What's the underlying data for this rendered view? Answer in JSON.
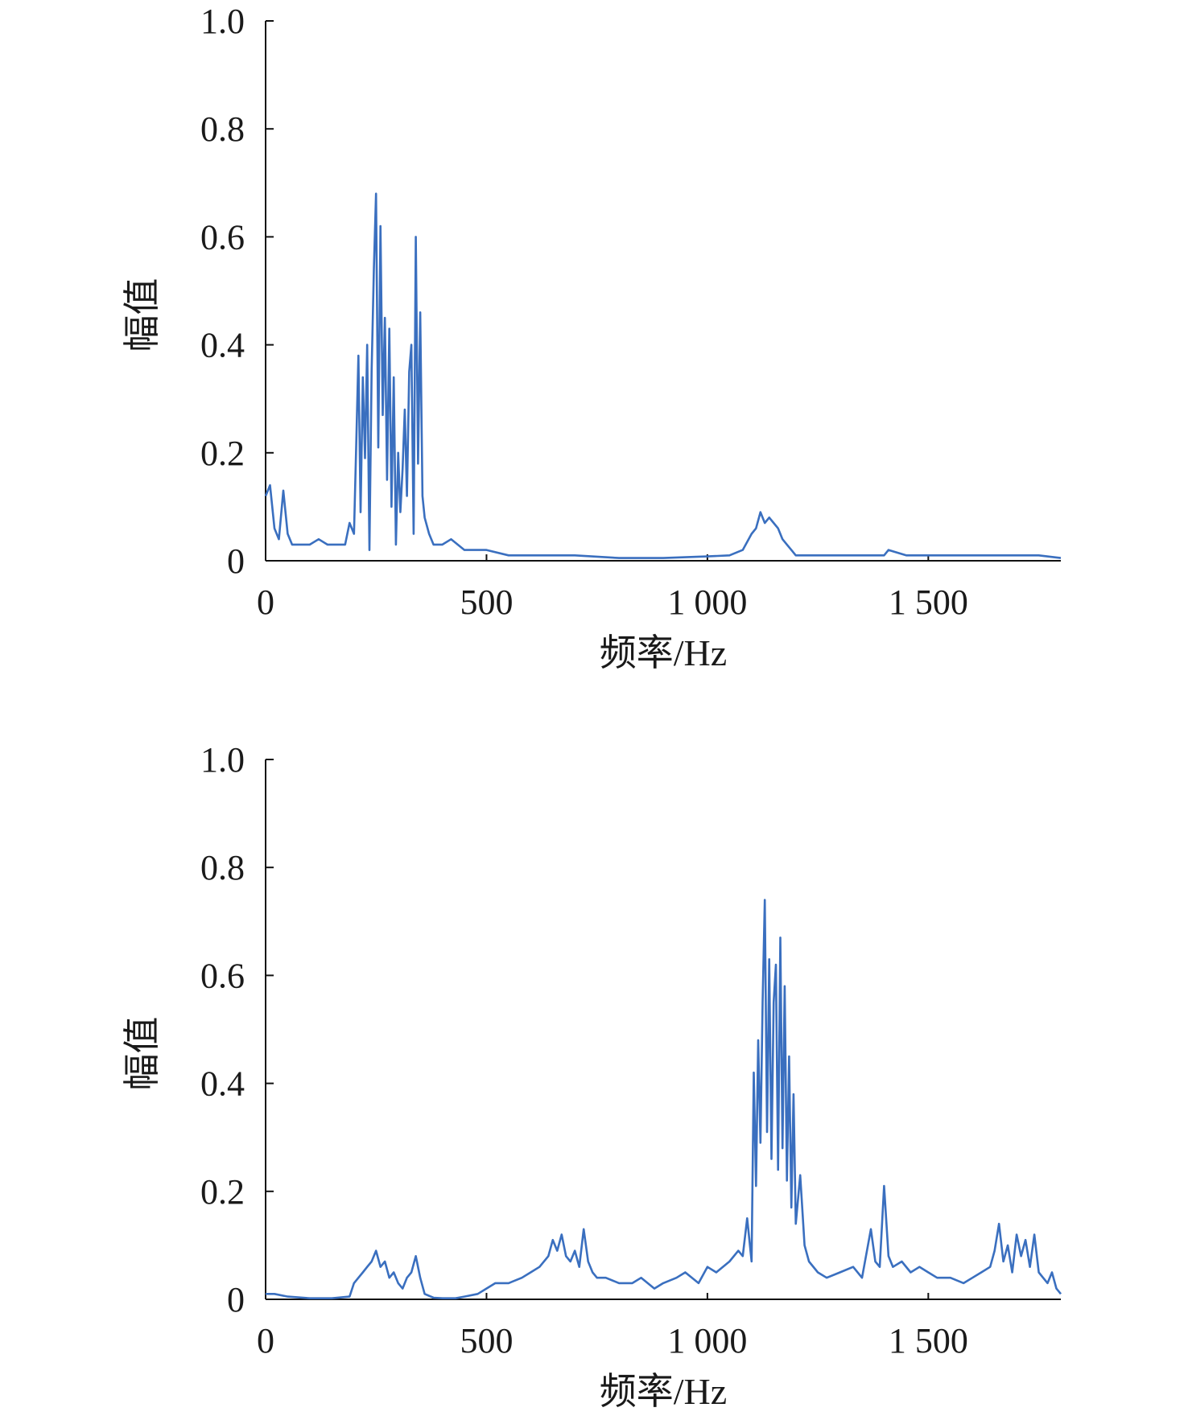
{
  "chart_data": [
    {
      "type": "line",
      "xlabel": "频率/Hz",
      "ylabel": "幅值",
      "xlim": [
        0,
        1800
      ],
      "ylim": [
        0,
        1.0
      ],
      "x_ticks": [
        0,
        500,
        1000,
        1500
      ],
      "x_tick_labels": [
        "0",
        "500",
        "1 000",
        "1 500"
      ],
      "y_ticks": [
        0,
        0.2,
        0.4,
        0.6,
        0.8,
        1.0
      ],
      "y_tick_labels": [
        "0",
        "0.2",
        "0.4",
        "0.6",
        "0.8",
        "1.0"
      ],
      "grid": false,
      "line_color": "#3a6fbf",
      "series": [
        {
          "x": [
            0,
            10,
            20,
            30,
            40,
            50,
            60,
            80,
            100,
            120,
            140,
            160,
            180,
            190,
            200,
            205,
            210,
            215,
            220,
            225,
            230,
            235,
            240,
            245,
            250,
            255,
            260,
            265,
            270,
            275,
            280,
            285,
            290,
            295,
            300,
            305,
            310,
            315,
            320,
            325,
            330,
            335,
            340,
            345,
            350,
            355,
            360,
            370,
            380,
            400,
            420,
            450,
            480,
            500,
            550,
            600,
            700,
            800,
            900,
            1000,
            1050,
            1080,
            1100,
            1110,
            1120,
            1130,
            1140,
            1150,
            1160,
            1170,
            1180,
            1190,
            1200,
            1220,
            1250,
            1300,
            1400,
            1410,
            1450,
            1500,
            1600,
            1650,
            1700,
            1750,
            1800
          ],
          "y": [
            0.12,
            0.14,
            0.06,
            0.04,
            0.13,
            0.05,
            0.03,
            0.03,
            0.03,
            0.04,
            0.03,
            0.03,
            0.03,
            0.07,
            0.05,
            0.21,
            0.38,
            0.09,
            0.34,
            0.19,
            0.4,
            0.02,
            0.35,
            0.54,
            0.68,
            0.21,
            0.62,
            0.27,
            0.45,
            0.15,
            0.43,
            0.1,
            0.34,
            0.03,
            0.2,
            0.09,
            0.17,
            0.28,
            0.12,
            0.35,
            0.4,
            0.05,
            0.6,
            0.18,
            0.46,
            0.12,
            0.08,
            0.05,
            0.03,
            0.03,
            0.04,
            0.02,
            0.02,
            0.02,
            0.01,
            0.01,
            0.01,
            0.005,
            0.005,
            0.008,
            0.01,
            0.02,
            0.05,
            0.06,
            0.09,
            0.07,
            0.08,
            0.07,
            0.06,
            0.04,
            0.03,
            0.02,
            0.01,
            0.01,
            0.01,
            0.01,
            0.01,
            0.02,
            0.01,
            0.01,
            0.01,
            0.01,
            0.01,
            0.01,
            0.005
          ]
        }
      ]
    },
    {
      "type": "line",
      "xlabel": "频率/Hz",
      "ylabel": "幅值",
      "xlim": [
        0,
        1800
      ],
      "ylim": [
        0,
        1.0
      ],
      "x_ticks": [
        0,
        500,
        1000,
        1500
      ],
      "x_tick_labels": [
        "0",
        "500",
        "1 000",
        "1 500"
      ],
      "y_ticks": [
        0,
        0.2,
        0.4,
        0.6,
        0.8,
        1.0
      ],
      "y_tick_labels": [
        "0",
        "0.2",
        "0.4",
        "0.6",
        "0.8",
        "1.0"
      ],
      "grid": false,
      "line_color": "#3a6fbf",
      "series": [
        {
          "x": [
            0,
            20,
            50,
            100,
            150,
            190,
            200,
            210,
            220,
            230,
            240,
            250,
            260,
            270,
            280,
            290,
            300,
            310,
            320,
            330,
            340,
            350,
            360,
            380,
            400,
            430,
            450,
            480,
            500,
            520,
            550,
            580,
            600,
            620,
            640,
            650,
            660,
            670,
            680,
            690,
            700,
            710,
            720,
            730,
            740,
            750,
            770,
            800,
            830,
            850,
            880,
            900,
            930,
            950,
            980,
            1000,
            1020,
            1050,
            1070,
            1080,
            1090,
            1100,
            1105,
            1110,
            1115,
            1120,
            1125,
            1130,
            1135,
            1140,
            1145,
            1150,
            1155,
            1160,
            1165,
            1170,
            1175,
            1180,
            1185,
            1190,
            1195,
            1200,
            1210,
            1220,
            1230,
            1250,
            1270,
            1300,
            1330,
            1350,
            1370,
            1380,
            1390,
            1400,
            1410,
            1420,
            1440,
            1460,
            1480,
            1500,
            1520,
            1550,
            1580,
            1600,
            1620,
            1640,
            1650,
            1660,
            1670,
            1680,
            1690,
            1700,
            1710,
            1720,
            1730,
            1740,
            1750,
            1760,
            1770,
            1780,
            1790,
            1800
          ],
          "y": [
            0.01,
            0.01,
            0.005,
            0.002,
            0.002,
            0.005,
            0.03,
            0.04,
            0.05,
            0.06,
            0.07,
            0.09,
            0.06,
            0.07,
            0.04,
            0.05,
            0.03,
            0.02,
            0.04,
            0.05,
            0.08,
            0.04,
            0.01,
            0.003,
            0.002,
            0.002,
            0.005,
            0.01,
            0.02,
            0.03,
            0.03,
            0.04,
            0.05,
            0.06,
            0.08,
            0.11,
            0.09,
            0.12,
            0.08,
            0.07,
            0.09,
            0.06,
            0.13,
            0.07,
            0.05,
            0.04,
            0.04,
            0.03,
            0.03,
            0.04,
            0.02,
            0.03,
            0.04,
            0.05,
            0.03,
            0.06,
            0.05,
            0.07,
            0.09,
            0.08,
            0.15,
            0.07,
            0.42,
            0.21,
            0.48,
            0.29,
            0.55,
            0.74,
            0.31,
            0.63,
            0.26,
            0.55,
            0.62,
            0.24,
            0.67,
            0.28,
            0.58,
            0.22,
            0.45,
            0.17,
            0.38,
            0.14,
            0.23,
            0.1,
            0.07,
            0.05,
            0.04,
            0.05,
            0.06,
            0.04,
            0.13,
            0.07,
            0.06,
            0.21,
            0.08,
            0.06,
            0.07,
            0.05,
            0.06,
            0.05,
            0.04,
            0.04,
            0.03,
            0.04,
            0.05,
            0.06,
            0.09,
            0.14,
            0.07,
            0.1,
            0.05,
            0.12,
            0.08,
            0.11,
            0.06,
            0.12,
            0.05,
            0.04,
            0.03,
            0.05,
            0.02,
            0.01
          ]
        }
      ]
    }
  ]
}
